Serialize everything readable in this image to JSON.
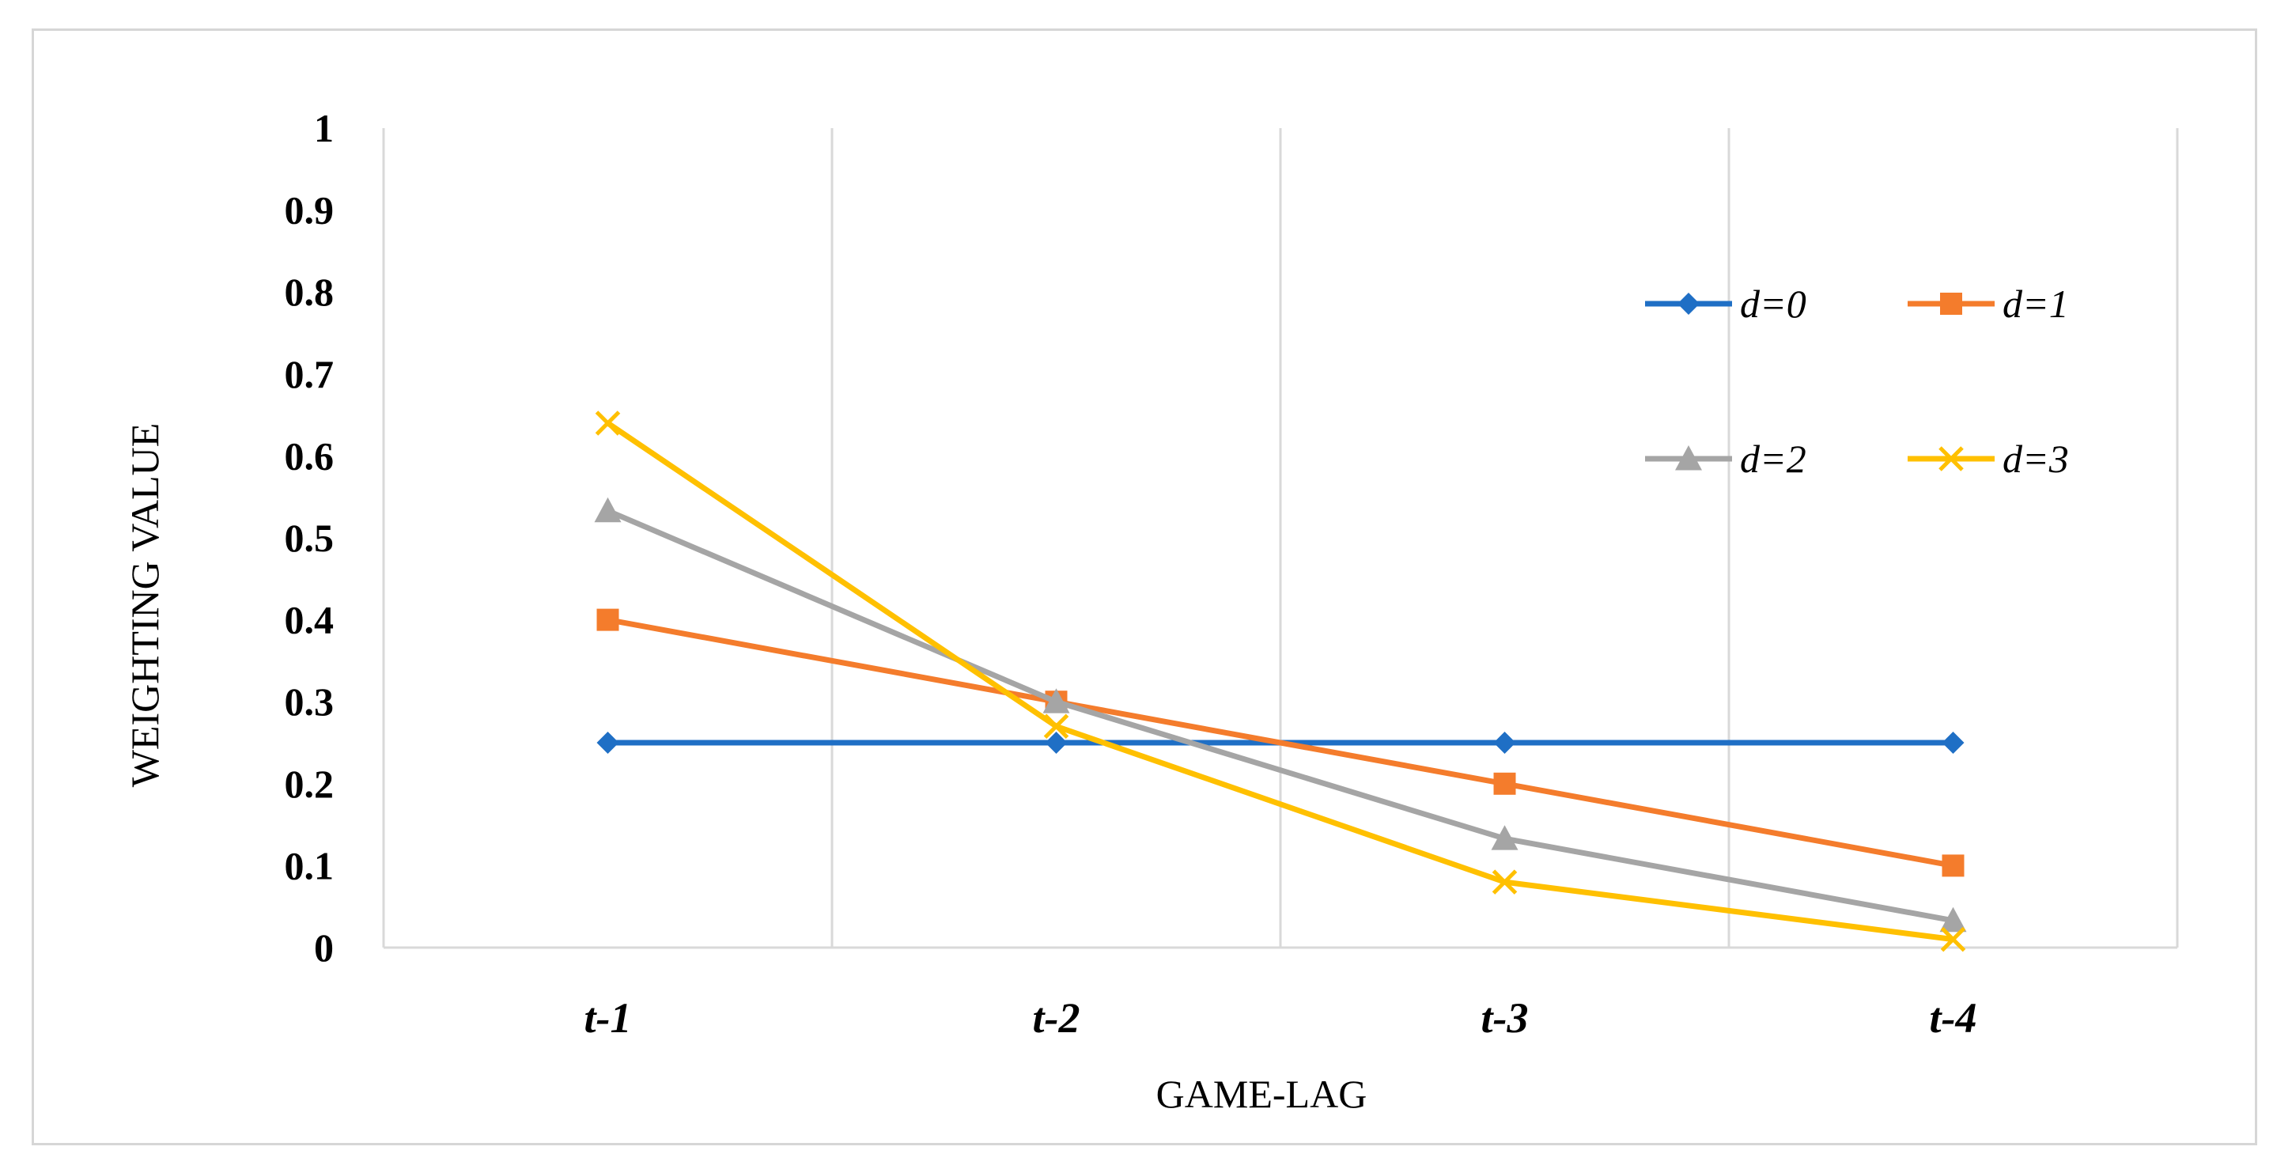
{
  "chart_data": {
    "type": "line",
    "title": "",
    "xlabel": "GAME-LAG",
    "ylabel": "WEIGHTING VALUE",
    "categories": [
      "t-1",
      "t-2",
      "t-3",
      "t-4"
    ],
    "ylim": [
      0,
      1
    ],
    "yticks": [
      "0",
      "0.1",
      "0.2",
      "0.3",
      "0.4",
      "0.5",
      "0.6",
      "0.7",
      "0.8",
      "0.9",
      "1"
    ],
    "grid": "vertical",
    "legend_position": "top-right",
    "series": [
      {
        "name": "d=0",
        "color": "#1f6fc5",
        "marker": "diamond",
        "values": [
          0.25,
          0.25,
          0.25,
          0.25
        ]
      },
      {
        "name": "d=1",
        "color": "#f47c2c",
        "marker": "square",
        "values": [
          0.4,
          0.3,
          0.2,
          0.1
        ]
      },
      {
        "name": "d=2",
        "color": "#a5a5a5",
        "marker": "triangle",
        "values": [
          0.533,
          0.3,
          0.133,
          0.033
        ]
      },
      {
        "name": "d=3",
        "color": "#ffc000",
        "marker": "x",
        "values": [
          0.64,
          0.27,
          0.08,
          0.01
        ]
      }
    ]
  }
}
